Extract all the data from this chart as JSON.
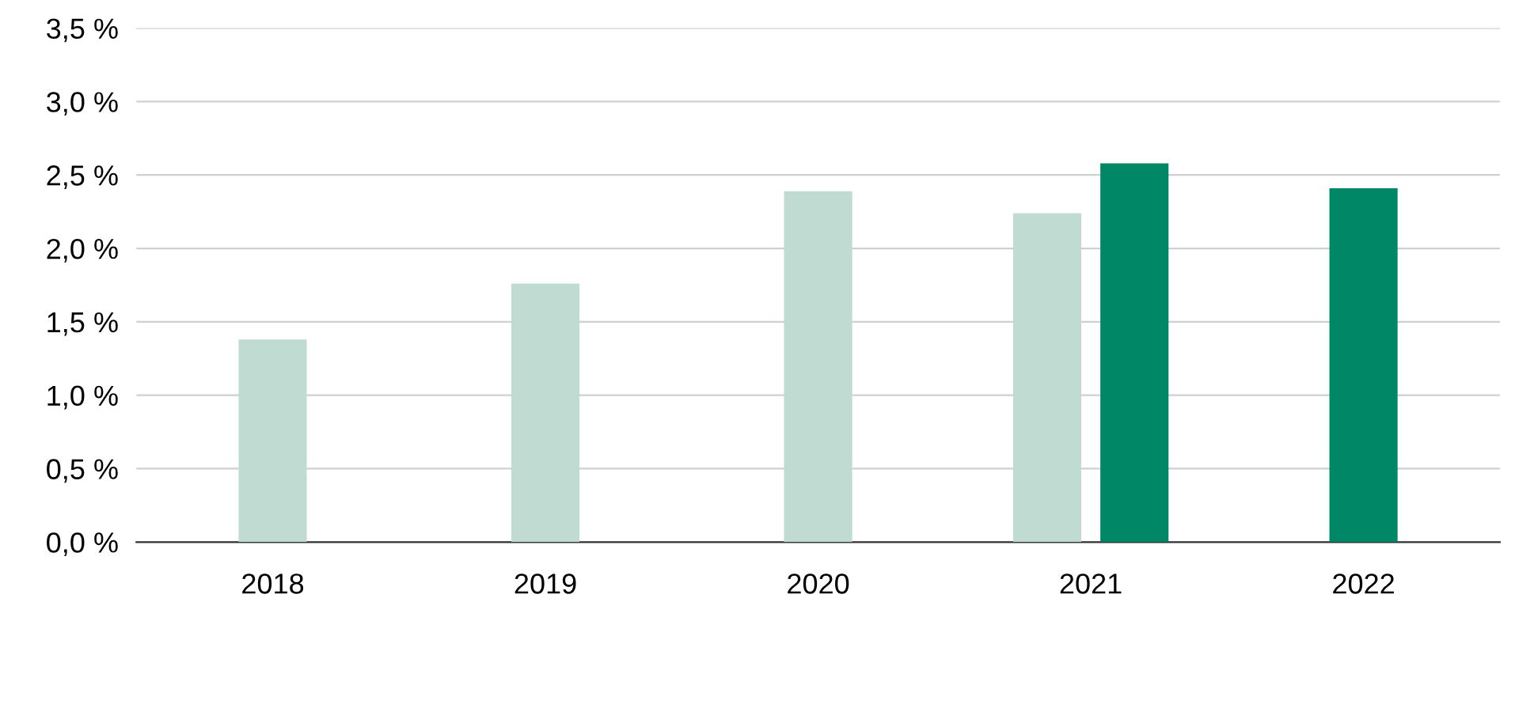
{
  "chart_data": {
    "type": "bar",
    "categories": [
      "2018",
      "2019",
      "2020",
      "2021",
      "2022"
    ],
    "series": [
      {
        "color": "#c0dbd1",
        "values": [
          1.38,
          1.76,
          2.39,
          2.24,
          null
        ]
      },
      {
        "color": "#008766",
        "values": [
          null,
          null,
          null,
          2.58,
          2.41
        ]
      }
    ],
    "ylim": [
      0,
      3.5
    ],
    "yticks": [
      {
        "value": 0,
        "label": "0,0 %"
      },
      {
        "value": 0.5,
        "label": "0,5 %"
      },
      {
        "value": 1,
        "label": "1,0 %"
      },
      {
        "value": 1.5,
        "label": "1,5 %"
      },
      {
        "value": 2,
        "label": "2,0 %"
      },
      {
        "value": 2.5,
        "label": "2,5 %"
      },
      {
        "value": 3,
        "label": "3,0 %"
      },
      {
        "value": 3.5,
        "label": "3,5 %"
      }
    ],
    "grid": "y"
  }
}
